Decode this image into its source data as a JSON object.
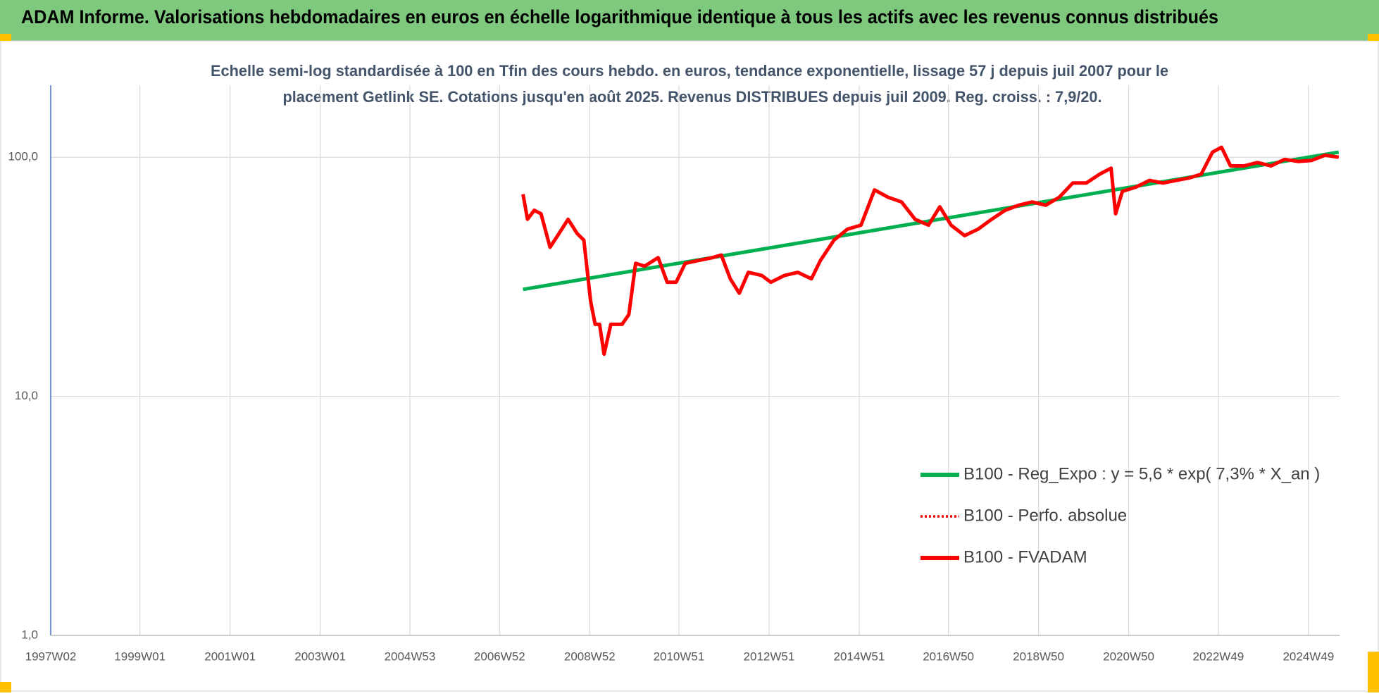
{
  "header": {
    "title": "ADAM Informe. Valorisations hebdomadaires en euros en échelle logarithmique identique à tous les actifs avec les revenus connus distribués"
  },
  "chart_data": {
    "type": "line",
    "subtitle": [
      "Echelle semi-log standardisée à 100 en Tfin des cours hebdo. en euros, tendance exponentielle, lissage 57 j depuis juil 2007 pour le",
      "placement Getlink SE. Cotations jusqu'en août 2025.  Revenus DISTRIBUES depuis juil 2009.  Reg. croiss. : 7,9/20."
    ],
    "log_y": true,
    "grid": true,
    "legend": "right",
    "xlim": [
      1997.02,
      2025.62
    ],
    "ylim": [
      1,
      200
    ],
    "xticks": [
      {
        "value": 1997.02,
        "label": "1997W02"
      },
      {
        "value": 1999.0,
        "label": "1999W01"
      },
      {
        "value": 2001.0,
        "label": "2001W01"
      },
      {
        "value": 2003.0,
        "label": "2003W01"
      },
      {
        "value": 2004.99,
        "label": "2004W53"
      },
      {
        "value": 2006.98,
        "label": "2006W52"
      },
      {
        "value": 2008.98,
        "label": "2008W52"
      },
      {
        "value": 2010.96,
        "label": "2010W51"
      },
      {
        "value": 2012.96,
        "label": "2012W51"
      },
      {
        "value": 2014.96,
        "label": "2014W51"
      },
      {
        "value": 2016.94,
        "label": "2016W50"
      },
      {
        "value": 2018.94,
        "label": "2018W50"
      },
      {
        "value": 2020.94,
        "label": "2020W50"
      },
      {
        "value": 2022.93,
        "label": "2022W49"
      },
      {
        "value": 2024.93,
        "label": "2024W49"
      }
    ],
    "yticks": [
      {
        "value": 1,
        "label": "1,0"
      },
      {
        "value": 10,
        "label": "10,0"
      },
      {
        "value": 100,
        "label": "100,0"
      }
    ],
    "series": [
      {
        "name": "B100 - Reg_Expo : y = 5,6 * exp( 7,3% *  X_an )",
        "color": "#00b050",
        "style": "solid",
        "x": [
          2007.5,
          2025.6
        ],
        "values": [
          28,
          105
        ]
      },
      {
        "name": "B100 - Perfo. absolue",
        "color": "#ff0000",
        "style": "dotted",
        "x": [
          2007.5,
          2007.6,
          2007.75,
          2007.9,
          2008.1,
          2008.3,
          2008.5,
          2008.7,
          2008.85,
          2009.0,
          2009.1,
          2009.2,
          2009.3,
          2009.45,
          2009.7,
          2009.85,
          2010.0,
          2010.2,
          2010.5,
          2010.7,
          2010.9,
          2011.1,
          2011.4,
          2011.7,
          2011.9,
          2012.1,
          2012.3,
          2012.5,
          2012.8,
          2013.0,
          2013.3,
          2013.6,
          2013.9,
          2014.1,
          2014.4,
          2014.7,
          2015.0,
          2015.3,
          2015.6,
          2015.9,
          2016.2,
          2016.5,
          2016.75,
          2017.0,
          2017.3,
          2017.6,
          2017.9,
          2018.2,
          2018.5,
          2018.8,
          2019.1,
          2019.4,
          2019.7,
          2020.0,
          2020.3,
          2020.55,
          2020.65,
          2020.8,
          2021.1,
          2021.4,
          2021.7,
          2022.0,
          2022.3,
          2022.55,
          2022.8,
          2023.0,
          2023.2,
          2023.5,
          2023.8,
          2024.1,
          2024.4,
          2024.7,
          2025.0,
          2025.3,
          2025.6
        ],
        "values": [
          70,
          55,
          60,
          58,
          42,
          48,
          55,
          48,
          45,
          25,
          20,
          20,
          15,
          20,
          20,
          22,
          36,
          35,
          38,
          30,
          30,
          36,
          37,
          38,
          39,
          31,
          27,
          33,
          32,
          30,
          32,
          33,
          31,
          37,
          45,
          50,
          52,
          73,
          68,
          65,
          55,
          52,
          62,
          52,
          47,
          50,
          55,
          60,
          63,
          65,
          63,
          68,
          78,
          78,
          85,
          90,
          58,
          72,
          75,
          80,
          78,
          80,
          82,
          85,
          105,
          110,
          92,
          92,
          95,
          92,
          98,
          96,
          97,
          102,
          100
        ]
      },
      {
        "name": "B100 - FVADAM",
        "color": "#ff0000",
        "style": "solid",
        "x": [
          2007.5,
          2007.6,
          2007.75,
          2007.9,
          2008.1,
          2008.3,
          2008.5,
          2008.7,
          2008.85,
          2009.0,
          2009.1,
          2009.2,
          2009.3,
          2009.45,
          2009.7,
          2009.85,
          2010.0,
          2010.2,
          2010.5,
          2010.7,
          2010.9,
          2011.1,
          2011.4,
          2011.7,
          2011.9,
          2012.1,
          2012.3,
          2012.5,
          2012.8,
          2013.0,
          2013.3,
          2013.6,
          2013.9,
          2014.1,
          2014.4,
          2014.7,
          2015.0,
          2015.3,
          2015.6,
          2015.9,
          2016.2,
          2016.5,
          2016.75,
          2017.0,
          2017.3,
          2017.6,
          2017.9,
          2018.2,
          2018.5,
          2018.8,
          2019.1,
          2019.4,
          2019.7,
          2020.0,
          2020.3,
          2020.55,
          2020.65,
          2020.8,
          2021.1,
          2021.4,
          2021.7,
          2022.0,
          2022.3,
          2022.55,
          2022.8,
          2023.0,
          2023.2,
          2023.5,
          2023.8,
          2024.1,
          2024.4,
          2024.7,
          2025.0,
          2025.3,
          2025.6
        ],
        "values": [
          70,
          55,
          60,
          58,
          42,
          48,
          55,
          48,
          45,
          25,
          20,
          20,
          15,
          20,
          20,
          22,
          36,
          35,
          38,
          30,
          30,
          36,
          37,
          38,
          39,
          31,
          27,
          33,
          32,
          30,
          32,
          33,
          31,
          37,
          45,
          50,
          52,
          73,
          68,
          65,
          55,
          52,
          62,
          52,
          47,
          50,
          55,
          60,
          63,
          65,
          63,
          68,
          78,
          78,
          85,
          90,
          58,
          72,
          75,
          80,
          78,
          80,
          82,
          85,
          105,
          110,
          92,
          92,
          95,
          92,
          98,
          96,
          97,
          102,
          100
        ]
      }
    ]
  }
}
